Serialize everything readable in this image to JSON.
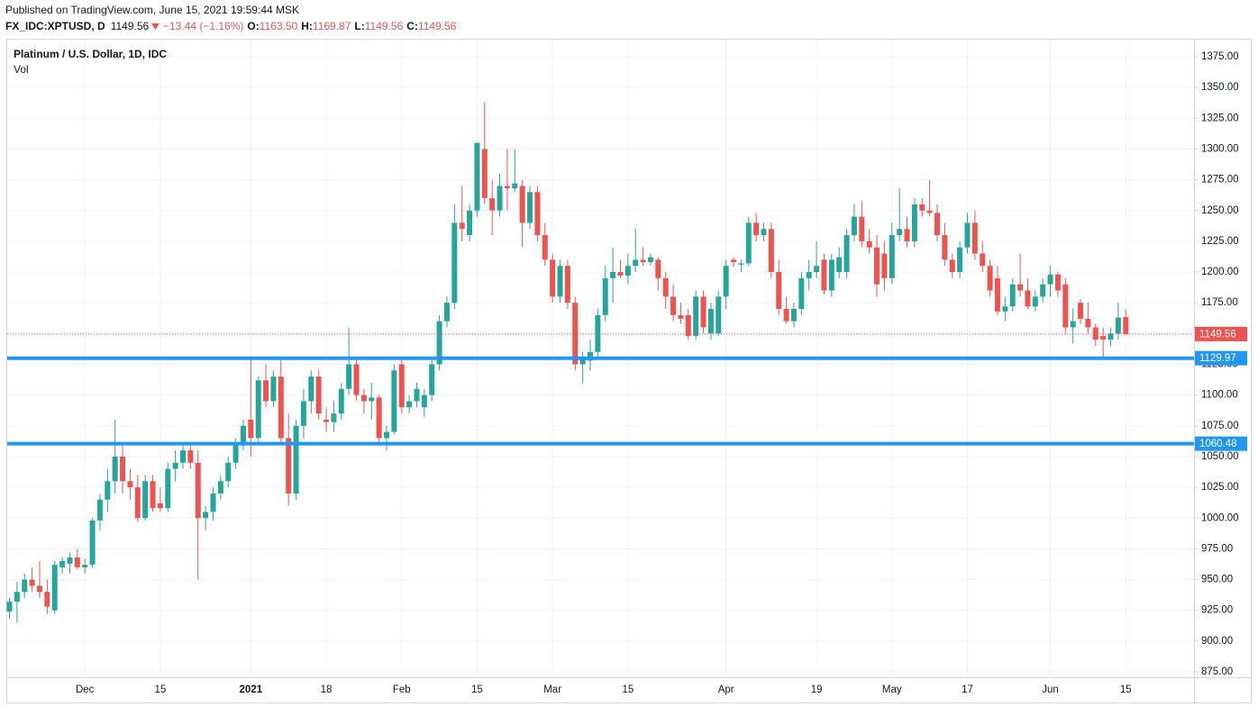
{
  "header": {
    "published": "Published on TradingView.com, June 15, 2021 19:59:44 MSK",
    "symbol": "FX_IDC:XPTUSD, D",
    "last": "1149.56",
    "change": "−13.44 (−1.16%)",
    "open_label": "O:",
    "open": "1163.50",
    "high_label": "H:",
    "high": "1169.87",
    "low_label": "L:",
    "low": "1149.56",
    "close_label": "C:",
    "close": "1149.56"
  },
  "chart_data": {
    "type": "candlestick",
    "title": "Platinum / U.S. Dollar, 1D, IDC",
    "subtitle": "Vol",
    "up_color": "#26a69a",
    "down_color": "#ef5350",
    "grid": true,
    "categories": [
      null,
      null,
      null,
      null,
      null,
      null,
      null,
      null,
      null,
      null,
      "Dec",
      null,
      null,
      null,
      null,
      null,
      null,
      null,
      null,
      null,
      "15",
      null,
      null,
      null,
      null,
      null,
      null,
      null,
      null,
      null,
      null,
      null,
      "2021",
      null,
      null,
      null,
      null,
      null,
      null,
      null,
      null,
      null,
      "18",
      null,
      null,
      null,
      null,
      null,
      null,
      null,
      null,
      null,
      "Feb",
      null,
      null,
      null,
      null,
      null,
      null,
      null,
      null,
      null,
      "15",
      null,
      null,
      null,
      null,
      null,
      null,
      null,
      null,
      null,
      "Mar",
      null,
      null,
      null,
      null,
      null,
      null,
      null,
      null,
      null,
      "15",
      null,
      null,
      null,
      null,
      null,
      null,
      null,
      null,
      null,
      null,
      null,
      null,
      "Apr",
      null,
      null,
      null,
      null,
      null,
      null,
      null,
      null,
      null,
      null,
      null,
      "19",
      null,
      null,
      null,
      null,
      null,
      null,
      null,
      null,
      null,
      "May",
      null,
      null,
      null,
      null,
      null,
      null,
      null,
      null,
      null,
      "17",
      null,
      null,
      null,
      null,
      null,
      null,
      null,
      null,
      null,
      null,
      "Jun",
      null,
      null,
      null,
      null,
      null,
      null,
      null,
      null,
      null,
      "15"
    ],
    "open": [
      924,
      932,
      940,
      950,
      945,
      940,
      925,
      960,
      963,
      968,
      960,
      962,
      998,
      1015,
      1030,
      1050,
      1030,
      1025,
      1000,
      1030,
      1012,
      1008,
      1040,
      1045,
      1055,
      1045,
      1000,
      1005,
      1020,
      1030,
      1045,
      1060,
      1080,
      1065,
      1112,
      1095,
      1115,
      1065,
      1020,
      1075,
      1095,
      1115,
      1080,
      1078,
      1085,
      1105,
      1125,
      1100,
      1095,
      1098,
      1065,
      1070,
      1125,
      1090,
      1095,
      1090,
      1100,
      1125,
      1160,
      1175,
      1240,
      1230,
      1250,
      1300,
      1260,
      1250,
      1270,
      1268,
      1270,
      1240,
      1265,
      1230,
      1210,
      1180,
      1205,
      1175,
      1125,
      1128,
      1135,
      1165,
      1195,
      1200,
      1197,
      1205,
      1210,
      1208,
      1210,
      1195,
      1180,
      1165,
      1165,
      1148,
      1180,
      1150,
      1150,
      1180,
      1210,
      1206,
      1207,
      1240,
      1230,
      1235,
      1200,
      1170,
      1160,
      1170,
      1195,
      1200,
      1210,
      1185,
      1200,
      1200,
      1230,
      1245,
      1225,
      1220,
      1215,
      1195,
      1230,
      1235,
      1225,
      1255,
      1250,
      1248,
      1230,
      1210,
      1200,
      1220,
      1240,
      1215,
      1205,
      1195,
      1168,
      1172,
      1190,
      1185,
      1172,
      1180,
      1190,
      1198,
      1190,
      1155,
      1175,
      1162,
      1155,
      1148,
      1145,
      1150,
      1163.5
    ],
    "high": [
      935,
      948,
      955,
      960,
      965,
      950,
      965,
      968,
      972,
      975,
      967,
      1000,
      1020,
      1040,
      1080,
      1060,
      1040,
      1035,
      1035,
      1035,
      1025,
      1045,
      1055,
      1060,
      1060,
      1055,
      1010,
      1025,
      1035,
      1050,
      1065,
      1080,
      1130,
      1115,
      1125,
      1120,
      1130,
      1085,
      1080,
      1105,
      1120,
      1120,
      1090,
      1095,
      1110,
      1155,
      1130,
      1105,
      1110,
      1100,
      1075,
      1125,
      1130,
      1100,
      1110,
      1105,
      1130,
      1165,
      1180,
      1255,
      1270,
      1255,
      1305,
      1338,
      1275,
      1280,
      1300,
      1300,
      1275,
      1270,
      1270,
      1240,
      1215,
      1210,
      1210,
      1180,
      1135,
      1145,
      1170,
      1205,
      1220,
      1210,
      1215,
      1235,
      1220,
      1215,
      1212,
      1200,
      1190,
      1175,
      1170,
      1185,
      1185,
      1175,
      1185,
      1210,
      1212,
      1210,
      1245,
      1248,
      1240,
      1240,
      1210,
      1180,
      1175,
      1200,
      1210,
      1225,
      1215,
      1215,
      1220,
      1235,
      1255,
      1258,
      1235,
      1230,
      1225,
      1240,
      1268,
      1245,
      1260,
      1260,
      1275,
      1255,
      1240,
      1215,
      1225,
      1248,
      1250,
      1225,
      1210,
      1205,
      1180,
      1195,
      1215,
      1195,
      1185,
      1195,
      1205,
      1200,
      1195,
      1170,
      1178,
      1175,
      1158,
      1155,
      1155,
      1175,
      1169.87
    ],
    "low": [
      918,
      915,
      935,
      940,
      935,
      922,
      922,
      955,
      955,
      958,
      955,
      960,
      990,
      1005,
      1020,
      1020,
      1015,
      997,
      998,
      1005,
      1005,
      1005,
      1030,
      1040,
      1040,
      950,
      990,
      998,
      1015,
      1025,
      1040,
      1055,
      1050,
      1060,
      1090,
      1090,
      1060,
      1010,
      1015,
      1065,
      1085,
      1080,
      1070,
      1070,
      1080,
      1100,
      1095,
      1085,
      1080,
      1060,
      1055,
      1068,
      1085,
      1085,
      1090,
      1082,
      1095,
      1120,
      1155,
      1170,
      1225,
      1225,
      1245,
      1255,
      1230,
      1245,
      1250,
      1265,
      1220,
      1235,
      1225,
      1205,
      1175,
      1175,
      1170,
      1120,
      1110,
      1120,
      1130,
      1160,
      1175,
      1195,
      1190,
      1200,
      1205,
      1205,
      1185,
      1170,
      1160,
      1158,
      1145,
      1145,
      1150,
      1145,
      1148,
      1170,
      1204,
      1200,
      1205,
      1225,
      1225,
      1195,
      1165,
      1158,
      1155,
      1165,
      1185,
      1195,
      1182,
      1180,
      1195,
      1195,
      1225,
      1220,
      1215,
      1180,
      1185,
      1190,
      1225,
      1220,
      1220,
      1245,
      1245,
      1225,
      1205,
      1195,
      1195,
      1215,
      1210,
      1200,
      1180,
      1165,
      1160,
      1168,
      1180,
      1170,
      1168,
      1175,
      1180,
      1180,
      1150,
      1142,
      1158,
      1150,
      1140,
      1130,
      1140,
      1145,
      1149.56
    ],
    "close": [
      932,
      940,
      950,
      945,
      940,
      928,
      962,
      965,
      968,
      960,
      962,
      998,
      1015,
      1030,
      1050,
      1030,
      1025,
      1000,
      1030,
      1008,
      1008,
      1040,
      1045,
      1055,
      1045,
      1000,
      1005,
      1020,
      1030,
      1045,
      1060,
      1075,
      1065,
      1112,
      1095,
      1115,
      1065,
      1020,
      1075,
      1095,
      1115,
      1085,
      1078,
      1085,
      1105,
      1125,
      1100,
      1095,
      1098,
      1065,
      1070,
      1120,
      1090,
      1095,
      1105,
      1100,
      1125,
      1160,
      1175,
      1240,
      1235,
      1250,
      1305,
      1260,
      1250,
      1270,
      1268,
      1272,
      1240,
      1265,
      1230,
      1210,
      1180,
      1205,
      1175,
      1125,
      1130,
      1135,
      1165,
      1195,
      1200,
      1197,
      1205,
      1210,
      1208,
      1212,
      1195,
      1180,
      1165,
      1162,
      1148,
      1180,
      1155,
      1170,
      1180,
      1205,
      1208,
      1207,
      1240,
      1230,
      1235,
      1200,
      1170,
      1160,
      1170,
      1195,
      1200,
      1205,
      1185,
      1210,
      1212,
      1230,
      1245,
      1225,
      1220,
      1190,
      1195,
      1230,
      1235,
      1225,
      1255,
      1250,
      1248,
      1230,
      1210,
      1200,
      1220,
      1240,
      1215,
      1205,
      1185,
      1168,
      1172,
      1190,
      1185,
      1172,
      1180,
      1190,
      1198,
      1185,
      1155,
      1160,
      1162,
      1155,
      1145,
      1145,
      1150,
      1163,
      1149.56
    ],
    "ylim": [
      870.6,
      1384.5
    ],
    "yticks": [
      {
        "value": 875,
        "label": "875.00"
      },
      {
        "value": 900,
        "label": "900.00"
      },
      {
        "value": 925,
        "label": "925.00"
      },
      {
        "value": 950,
        "label": "950.00"
      },
      {
        "value": 975,
        "label": "975.00"
      },
      {
        "value": 1000,
        "label": "1000.00"
      },
      {
        "value": 1025,
        "label": "1025.00"
      },
      {
        "value": 1050,
        "label": "1050.00"
      },
      {
        "value": 1075,
        "label": "1075.00"
      },
      {
        "value": 1100,
        "label": "1100.00"
      },
      {
        "value": 1125,
        "label": "1125.00"
      },
      {
        "value": 1150,
        "label": "1150.00"
      },
      {
        "value": 1175,
        "label": "1175.00"
      },
      {
        "value": 1200,
        "label": "1200.00"
      },
      {
        "value": 1225,
        "label": "1225.00"
      },
      {
        "value": 1250,
        "label": "1250.00"
      },
      {
        "value": 1275,
        "label": "1275.00"
      },
      {
        "value": 1300,
        "label": "1300.00"
      },
      {
        "value": 1325,
        "label": "1325.00"
      },
      {
        "value": 1350,
        "label": "1350.00"
      },
      {
        "value": 1375,
        "label": "1375.00"
      }
    ],
    "hlines": [
      {
        "value": 1129.97,
        "label": "1129.97",
        "color": "#2196f3"
      },
      {
        "value": 1060.48,
        "label": "1060.48",
        "color": "#2196f3"
      }
    ],
    "last_price": {
      "value": 1149.56,
      "label": "1149.56",
      "color": "#ef5350"
    }
  }
}
